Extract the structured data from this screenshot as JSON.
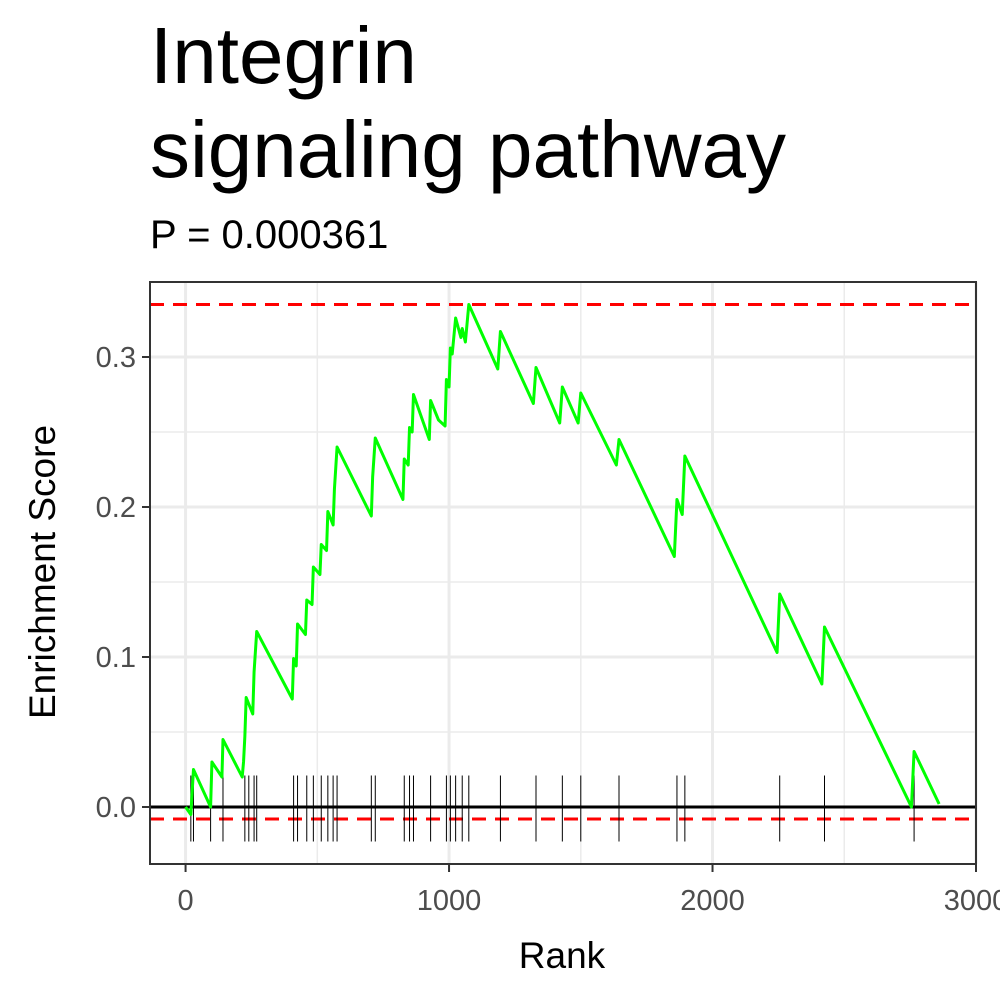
{
  "chart_data": {
    "type": "line",
    "title_lines": [
      "Integrin",
      "signaling pathway"
    ],
    "subtitle": "P = 0.000361",
    "xlabel": "Rank",
    "ylabel": "Enrichment Score",
    "xlim": [
      -135,
      3000
    ],
    "ylim": [
      -0.038,
      0.35
    ],
    "x_ticks": [
      {
        "value": 0,
        "label": "0"
      },
      {
        "value": 1000,
        "label": "1000"
      },
      {
        "value": 2000,
        "label": "2000"
      },
      {
        "value": 3000,
        "label": "3000"
      }
    ],
    "y_ticks": [
      {
        "value": 0.0,
        "label": "0.0"
      },
      {
        "value": 0.1,
        "label": "0.1"
      },
      {
        "value": 0.2,
        "label": "0.2"
      },
      {
        "value": 0.3,
        "label": "0.3"
      }
    ],
    "grid": true,
    "reference_lines": [
      {
        "type": "dashed",
        "value": 0.335,
        "color": "#ff0000"
      },
      {
        "type": "dashed",
        "value": -0.008,
        "color": "#ff0000"
      },
      {
        "type": "solid",
        "value": 0.0,
        "color": "#000000"
      }
    ],
    "series": [
      {
        "color": "#00ff00",
        "points": [
          [
            0,
            0.0
          ],
          [
            20,
            -0.005
          ],
          [
            30,
            0.025
          ],
          [
            95,
            0.0
          ],
          [
            100,
            0.03
          ],
          [
            138,
            0.02
          ],
          [
            142,
            0.045
          ],
          [
            215,
            0.02
          ],
          [
            220,
            0.03
          ],
          [
            225,
            0.047
          ],
          [
            230,
            0.073
          ],
          [
            255,
            0.062
          ],
          [
            260,
            0.09
          ],
          [
            270,
            0.117
          ],
          [
            405,
            0.072
          ],
          [
            410,
            0.099
          ],
          [
            420,
            0.094
          ],
          [
            425,
            0.122
          ],
          [
            455,
            0.115
          ],
          [
            460,
            0.138
          ],
          [
            480,
            0.135
          ],
          [
            485,
            0.16
          ],
          [
            510,
            0.155
          ],
          [
            515,
            0.175
          ],
          [
            535,
            0.171
          ],
          [
            540,
            0.197
          ],
          [
            560,
            0.188
          ],
          [
            565,
            0.212
          ],
          [
            575,
            0.24
          ],
          [
            705,
            0.194
          ],
          [
            710,
            0.22
          ],
          [
            720,
            0.246
          ],
          [
            825,
            0.205
          ],
          [
            830,
            0.232
          ],
          [
            845,
            0.228
          ],
          [
            850,
            0.253
          ],
          [
            860,
            0.25
          ],
          [
            865,
            0.275
          ],
          [
            925,
            0.245
          ],
          [
            930,
            0.271
          ],
          [
            960,
            0.258
          ],
          [
            985,
            0.254
          ],
          [
            990,
            0.285
          ],
          [
            1000,
            0.28
          ],
          [
            1005,
            0.306
          ],
          [
            1012,
            0.302
          ],
          [
            1025,
            0.326
          ],
          [
            1045,
            0.313
          ],
          [
            1050,
            0.319
          ],
          [
            1062,
            0.31
          ],
          [
            1075,
            0.335
          ],
          [
            1185,
            0.292
          ],
          [
            1195,
            0.317
          ],
          [
            1320,
            0.269
          ],
          [
            1330,
            0.293
          ],
          [
            1420,
            0.256
          ],
          [
            1430,
            0.28
          ],
          [
            1490,
            0.256
          ],
          [
            1500,
            0.276
          ],
          [
            1635,
            0.228
          ],
          [
            1645,
            0.245
          ],
          [
            1855,
            0.167
          ],
          [
            1865,
            0.205
          ],
          [
            1885,
            0.195
          ],
          [
            1895,
            0.234
          ],
          [
            2245,
            0.103
          ],
          [
            2255,
            0.142
          ],
          [
            2415,
            0.082
          ],
          [
            2425,
            0.12
          ],
          [
            2755,
            0.0
          ],
          [
            2765,
            0.037
          ],
          [
            2860,
            0.002
          ]
        ]
      }
    ],
    "gene_hits": [
      20,
      30,
      95,
      142,
      225,
      240,
      260,
      270,
      410,
      425,
      460,
      485,
      515,
      540,
      560,
      575,
      705,
      720,
      830,
      850,
      865,
      930,
      990,
      1005,
      1025,
      1050,
      1075,
      1195,
      1330,
      1430,
      1500,
      1645,
      1865,
      1895,
      2255,
      2425,
      2765
    ],
    "colors": {
      "line": "#00ff00",
      "dashed": "#ff0000",
      "zero_line": "#000000",
      "grid": "#ebebeb",
      "panel_border": "#333333",
      "tick_label": "#4d4d4d"
    }
  }
}
